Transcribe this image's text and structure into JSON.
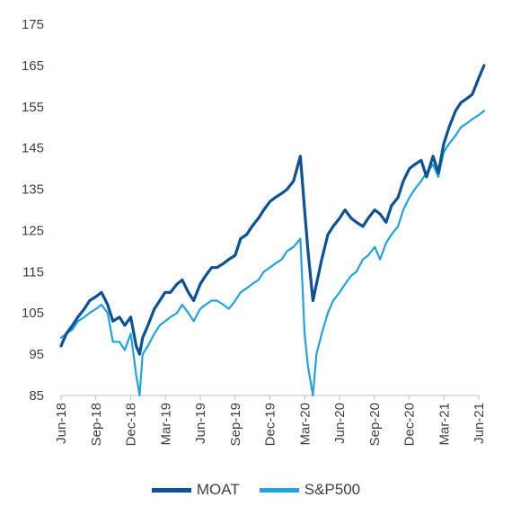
{
  "chart_data": {
    "type": "line",
    "title": "",
    "xlabel": "",
    "ylabel": "",
    "ylim": [
      85,
      175
    ],
    "yticks": [
      85,
      95,
      105,
      115,
      125,
      135,
      145,
      155,
      165,
      175
    ],
    "xlim": [
      "2018-06",
      "2021-06"
    ],
    "xticks": [
      "Jun-18",
      "Sep-18",
      "Dec-18",
      "Mar-19",
      "Jun-19",
      "Sep-19",
      "Dec-19",
      "Mar-20",
      "Jun-20",
      "Sep-20",
      "Dec-20",
      "Mar-21",
      "Jun-21"
    ],
    "legend_position": "bottom",
    "grid": false,
    "x": [
      "2018-06-01",
      "2018-06-15",
      "2018-07-01",
      "2018-07-15",
      "2018-08-01",
      "2018-08-15",
      "2018-09-01",
      "2018-09-15",
      "2018-10-01",
      "2018-10-15",
      "2018-11-01",
      "2018-11-15",
      "2018-12-01",
      "2018-12-15",
      "2018-12-24",
      "2019-01-01",
      "2019-01-15",
      "2019-02-01",
      "2019-02-15",
      "2019-03-01",
      "2019-03-15",
      "2019-04-01",
      "2019-04-15",
      "2019-05-01",
      "2019-05-15",
      "2019-06-01",
      "2019-06-15",
      "2019-07-01",
      "2019-07-15",
      "2019-08-01",
      "2019-08-15",
      "2019-09-01",
      "2019-09-15",
      "2019-10-01",
      "2019-10-15",
      "2019-11-01",
      "2019-11-15",
      "2019-12-01",
      "2019-12-15",
      "2020-01-01",
      "2020-01-15",
      "2020-02-01",
      "2020-02-19",
      "2020-03-01",
      "2020-03-10",
      "2020-03-23",
      "2020-04-01",
      "2020-04-15",
      "2020-05-01",
      "2020-05-15",
      "2020-06-01",
      "2020-06-15",
      "2020-07-01",
      "2020-07-15",
      "2020-08-01",
      "2020-08-15",
      "2020-09-01",
      "2020-09-15",
      "2020-10-01",
      "2020-10-15",
      "2020-11-01",
      "2020-11-15",
      "2020-12-01",
      "2020-12-15",
      "2021-01-01",
      "2021-01-15",
      "2021-02-01",
      "2021-02-15",
      "2021-03-01",
      "2021-03-15",
      "2021-04-01",
      "2021-04-15",
      "2021-05-01",
      "2021-05-15",
      "2021-06-01",
      "2021-06-15"
    ],
    "series": [
      {
        "name": "MOAT",
        "color": "#0b5394",
        "values": [
          97,
          100,
          102,
          104,
          106,
          108,
          109,
          110,
          107,
          103,
          104,
          102,
          104,
          97,
          95,
          99,
          102,
          106,
          108,
          110,
          110,
          112,
          113,
          110,
          108,
          112,
          114,
          116,
          116,
          117,
          118,
          119,
          123,
          124,
          126,
          128,
          130,
          132,
          133,
          134,
          135,
          137,
          143,
          130,
          120,
          108,
          112,
          118,
          124,
          126,
          128,
          130,
          128,
          127,
          126,
          128,
          130,
          129,
          127,
          131,
          133,
          137,
          140,
          141,
          142,
          138,
          143,
          139,
          146,
          150,
          154,
          156,
          157,
          158,
          162,
          165
        ]
      },
      {
        "name": "S&P500",
        "color": "#20a3e0",
        "values": [
          99,
          100,
          101,
          103,
          104,
          105,
          106,
          107,
          105,
          98,
          98,
          96,
          100,
          90,
          85,
          95,
          97,
          100,
          102,
          103,
          104,
          105,
          107,
          105,
          103,
          106,
          107,
          108,
          108,
          107,
          106,
          108,
          110,
          111,
          112,
          113,
          115,
          116,
          117,
          118,
          120,
          121,
          123,
          100,
          92,
          85,
          95,
          100,
          105,
          108,
          110,
          112,
          114,
          115,
          118,
          119,
          121,
          118,
          122,
          124,
          126,
          130,
          133,
          135,
          137,
          139,
          141,
          138,
          144,
          146,
          148,
          150,
          151,
          152,
          153,
          154
        ]
      }
    ]
  }
}
